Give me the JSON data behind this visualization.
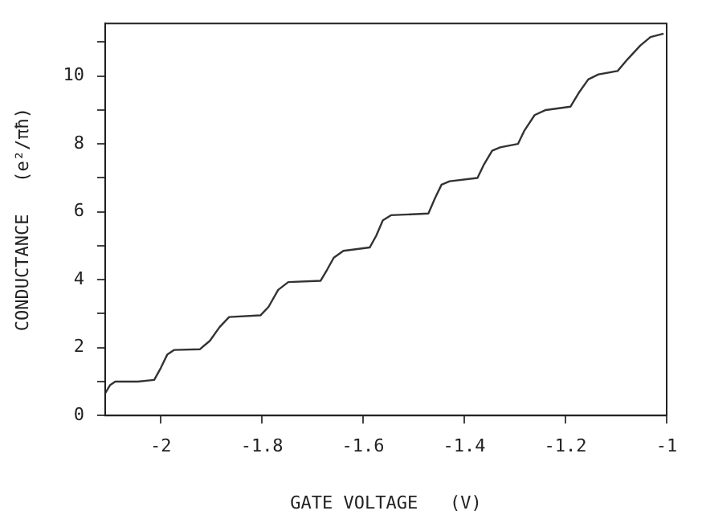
{
  "chart_data": {
    "type": "line",
    "xlabel": "GATE VOLTAGE   (V)",
    "ylabel": "CONDUCTANCE   (e²/πħ)",
    "xlim": [
      -2.11,
      -1.0
    ],
    "xticks": [
      -2,
      {
        "value": -1.8,
        "label": "-1.8"
      },
      {
        "value": -1.6,
        "label": "-1.6"
      },
      {
        "value": -1.4,
        "label": "-1.4"
      },
      {
        "value": -1.2,
        "label": "-1.2"
      },
      -1
    ],
    "ylim": [
      0,
      11.55
    ],
    "yticks": [
      0,
      {
        "value": 1,
        "label": null
      },
      2,
      {
        "value": 3,
        "label": null
      },
      4,
      {
        "value": 5,
        "label": null
      },
      6,
      {
        "value": 7,
        "label": null
      },
      8,
      {
        "value": 9,
        "label": null
      },
      10,
      {
        "value": 11,
        "label": null
      }
    ],
    "grid": false,
    "legend": false,
    "marker": "none",
    "line_style": "solid",
    "series": [
      {
        "color": "#333333",
        "x": [
          -2.11,
          -2.1,
          -2.09,
          -2.045,
          -2.013,
          -2.0,
          -1.987,
          -1.974,
          -1.923,
          -1.903,
          -1.884,
          -1.865,
          -1.803,
          -1.787,
          -1.768,
          -1.748,
          -1.684,
          -1.671,
          -1.658,
          -1.639,
          -1.587,
          -1.574,
          -1.561,
          -1.545,
          -1.471,
          -1.458,
          -1.445,
          -1.429,
          -1.374,
          -1.361,
          -1.345,
          -1.329,
          -1.294,
          -1.281,
          -1.261,
          -1.239,
          -1.19,
          -1.174,
          -1.155,
          -1.135,
          -1.097,
          -1.077,
          -1.052,
          -1.032,
          -1.006
        ],
        "values": [
          0.65,
          0.9,
          1.0,
          1.0,
          1.05,
          1.4,
          1.8,
          1.93,
          1.95,
          2.2,
          2.6,
          2.9,
          2.95,
          3.2,
          3.7,
          3.93,
          3.97,
          4.3,
          4.65,
          4.85,
          4.95,
          5.3,
          5.75,
          5.9,
          5.95,
          6.4,
          6.8,
          6.9,
          7.0,
          7.4,
          7.8,
          7.9,
          8.0,
          8.4,
          8.85,
          9.0,
          9.1,
          9.5,
          9.9,
          10.05,
          10.15,
          10.5,
          10.9,
          11.15,
          11.25
        ]
      }
    ]
  }
}
